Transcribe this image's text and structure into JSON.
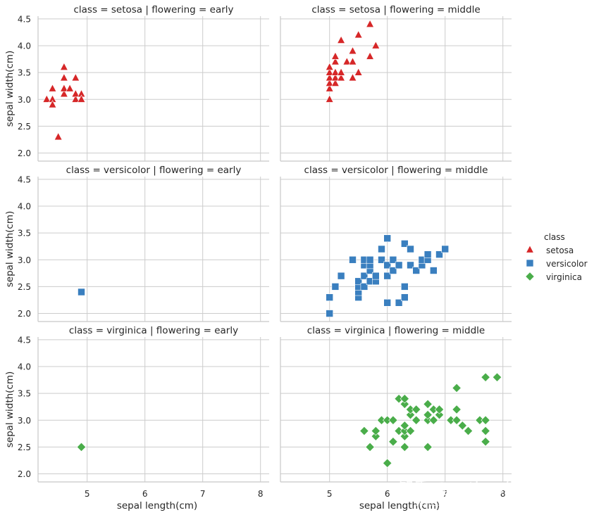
{
  "colors": {
    "setosa": "#d62728",
    "versicolor": "#3a7fbf",
    "virginica": "#4aad4a",
    "grid": "#cccccc",
    "spine": "#c8c8c8"
  },
  "chart_data": {
    "type": "scatter",
    "xlabel": "sepal length(cm)",
    "ylabel": "sepal width(cm)",
    "xlim": [
      4.15,
      8.15
    ],
    "ylim": [
      1.85,
      4.55
    ],
    "xticks": [
      5,
      6,
      7,
      8
    ],
    "yticks": [
      2.0,
      2.5,
      3.0,
      3.5,
      4.0,
      4.5
    ],
    "ytick_labels": [
      "2.0",
      "2.5",
      "3.0",
      "3.5",
      "4.0",
      "4.5"
    ],
    "grid": true,
    "legend": {
      "title": "class",
      "placement": "right",
      "entries": [
        {
          "name": "setosa",
          "marker": "triangle"
        },
        {
          "name": "versicolor",
          "marker": "square"
        },
        {
          "name": "virginica",
          "marker": "diamond"
        }
      ]
    },
    "panels": [
      {
        "title": "class = setosa | flowering = early",
        "class": "setosa",
        "points": [
          [
            4.3,
            3.0
          ],
          [
            4.4,
            3.0
          ],
          [
            4.4,
            2.9
          ],
          [
            4.4,
            3.2
          ],
          [
            4.5,
            2.3
          ],
          [
            4.6,
            3.1
          ],
          [
            4.6,
            3.4
          ],
          [
            4.6,
            3.2
          ],
          [
            4.6,
            3.6
          ],
          [
            4.7,
            3.2
          ],
          [
            4.8,
            3.4
          ],
          [
            4.8,
            3.0
          ],
          [
            4.8,
            3.1
          ],
          [
            4.9,
            3.1
          ],
          [
            4.9,
            3.0
          ]
        ]
      },
      {
        "title": "class = setosa | flowering = middle",
        "class": "setosa",
        "points": [
          [
            5.0,
            3.0
          ],
          [
            5.0,
            3.2
          ],
          [
            5.0,
            3.3
          ],
          [
            5.0,
            3.4
          ],
          [
            5.0,
            3.5
          ],
          [
            5.0,
            3.6
          ],
          [
            5.1,
            3.3
          ],
          [
            5.1,
            3.4
          ],
          [
            5.1,
            3.5
          ],
          [
            5.1,
            3.7
          ],
          [
            5.1,
            3.8
          ],
          [
            5.2,
            3.4
          ],
          [
            5.2,
            3.5
          ],
          [
            5.2,
            4.1
          ],
          [
            5.3,
            3.7
          ],
          [
            5.4,
            3.4
          ],
          [
            5.4,
            3.7
          ],
          [
            5.4,
            3.9
          ],
          [
            5.5,
            3.5
          ],
          [
            5.5,
            4.2
          ],
          [
            5.7,
            3.8
          ],
          [
            5.7,
            4.4
          ],
          [
            5.8,
            4.0
          ]
        ]
      },
      {
        "title": "class = versicolor | flowering = early",
        "class": "versicolor",
        "points": [
          [
            4.9,
            2.4
          ]
        ]
      },
      {
        "title": "class = versicolor | flowering = middle",
        "class": "versicolor",
        "points": [
          [
            5.0,
            2.0
          ],
          [
            5.0,
            2.3
          ],
          [
            5.1,
            2.5
          ],
          [
            5.2,
            2.7
          ],
          [
            5.4,
            3.0
          ],
          [
            5.5,
            2.3
          ],
          [
            5.5,
            2.4
          ],
          [
            5.5,
            2.5
          ],
          [
            5.5,
            2.6
          ],
          [
            5.6,
            2.5
          ],
          [
            5.6,
            2.7
          ],
          [
            5.6,
            2.9
          ],
          [
            5.6,
            3.0
          ],
          [
            5.7,
            2.6
          ],
          [
            5.7,
            2.8
          ],
          [
            5.7,
            2.9
          ],
          [
            5.7,
            3.0
          ],
          [
            5.8,
            2.6
          ],
          [
            5.8,
            2.7
          ],
          [
            5.9,
            3.0
          ],
          [
            5.9,
            3.2
          ],
          [
            6.0,
            2.2
          ],
          [
            6.0,
            2.7
          ],
          [
            6.0,
            2.9
          ],
          [
            6.0,
            3.4
          ],
          [
            6.1,
            2.8
          ],
          [
            6.1,
            3.0
          ],
          [
            6.2,
            2.2
          ],
          [
            6.2,
            2.9
          ],
          [
            6.3,
            2.3
          ],
          [
            6.3,
            2.5
          ],
          [
            6.3,
            3.3
          ],
          [
            6.4,
            2.9
          ],
          [
            6.4,
            3.2
          ],
          [
            6.5,
            2.8
          ],
          [
            6.6,
            2.9
          ],
          [
            6.6,
            3.0
          ],
          [
            6.7,
            3.0
          ],
          [
            6.7,
            3.1
          ],
          [
            6.8,
            2.8
          ],
          [
            6.9,
            3.1
          ],
          [
            7.0,
            3.2
          ]
        ]
      },
      {
        "title": "class = virginica | flowering = early",
        "class": "virginica",
        "points": [
          [
            4.9,
            2.5
          ]
        ]
      },
      {
        "title": "class = virginica | flowering = middle",
        "class": "virginica",
        "points": [
          [
            5.6,
            2.8
          ],
          [
            5.7,
            2.5
          ],
          [
            5.8,
            2.7
          ],
          [
            5.8,
            2.8
          ],
          [
            5.9,
            3.0
          ],
          [
            6.0,
            2.2
          ],
          [
            6.0,
            3.0
          ],
          [
            6.1,
            2.6
          ],
          [
            6.1,
            3.0
          ],
          [
            6.2,
            2.8
          ],
          [
            6.2,
            3.4
          ],
          [
            6.3,
            2.5
          ],
          [
            6.3,
            2.7
          ],
          [
            6.3,
            2.8
          ],
          [
            6.3,
            2.9
          ],
          [
            6.3,
            3.3
          ],
          [
            6.3,
            3.4
          ],
          [
            6.4,
            2.8
          ],
          [
            6.4,
            3.1
          ],
          [
            6.4,
            3.2
          ],
          [
            6.5,
            3.0
          ],
          [
            6.5,
            3.2
          ],
          [
            6.7,
            2.5
          ],
          [
            6.7,
            3.0
          ],
          [
            6.7,
            3.1
          ],
          [
            6.7,
            3.3
          ],
          [
            6.8,
            3.0
          ],
          [
            6.8,
            3.2
          ],
          [
            6.9,
            3.1
          ],
          [
            6.9,
            3.2
          ],
          [
            7.1,
            3.0
          ],
          [
            7.2,
            3.0
          ],
          [
            7.2,
            3.2
          ],
          [
            7.2,
            3.6
          ],
          [
            7.3,
            2.9
          ],
          [
            7.4,
            2.8
          ],
          [
            7.6,
            3.0
          ],
          [
            7.7,
            2.6
          ],
          [
            7.7,
            2.8
          ],
          [
            7.7,
            3.0
          ],
          [
            7.7,
            3.8
          ],
          [
            7.9,
            3.8
          ]
        ]
      }
    ]
  },
  "watermark": {
    "line1": "知乎 @python生物人",
    "line2": "https://blog.csdn.net/qq_21478261"
  }
}
